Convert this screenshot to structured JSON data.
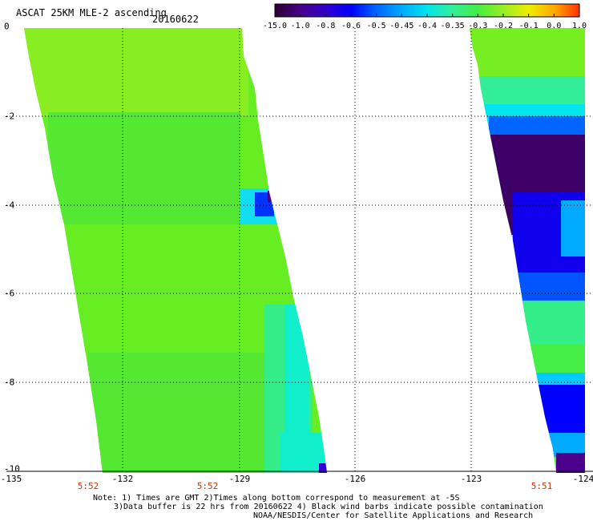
{
  "header": {
    "title": "ASCAT 25KM MLE-2 ascending",
    "date": "20160622"
  },
  "colorbar": {
    "labels": [
      "-15.0",
      "-1.0",
      "-0.8",
      "-0.6",
      "-0.5",
      "-0.45",
      "-0.4",
      "-0.35",
      "-0.3",
      "-0.2",
      "-0.1",
      "0.0",
      "1.0"
    ],
    "colors": [
      "#2a0033",
      "#4a008a",
      "#3300cc",
      "#0000ff",
      "#0066ff",
      "#00aaff",
      "#00e5ee",
      "#33ee99",
      "#44ee44",
      "#99ee22",
      "#eeee00",
      "#ffaa00",
      "#ff3300"
    ]
  },
  "axes": {
    "x_ticks": [
      "-135",
      "-132",
      "-129",
      "-126",
      "-123",
      "-124"
    ],
    "y_ticks": [
      "0",
      "-2",
      "-4",
      "-6",
      "-8",
      "-10"
    ]
  },
  "pass_times": [
    "5:52",
    "5:52",
    "5:51"
  ],
  "notes": {
    "line1": "Note: 1) Times are GMT 2)Times along bottom correspond to measurement at -5S",
    "line2": "3)Data buffer is 22 hrs from 20160622 4) Black wind barbs indicate possible contamination",
    "line3": "NOAA/NESDIS/Center for Satellite Applications and Research"
  },
  "swaths": {
    "west": {
      "dominant_color": "#77ee22",
      "edge_color": "#00e5ee"
    },
    "east": {
      "dominant_color": "#44ee44",
      "low_color": "#3d0066"
    }
  }
}
